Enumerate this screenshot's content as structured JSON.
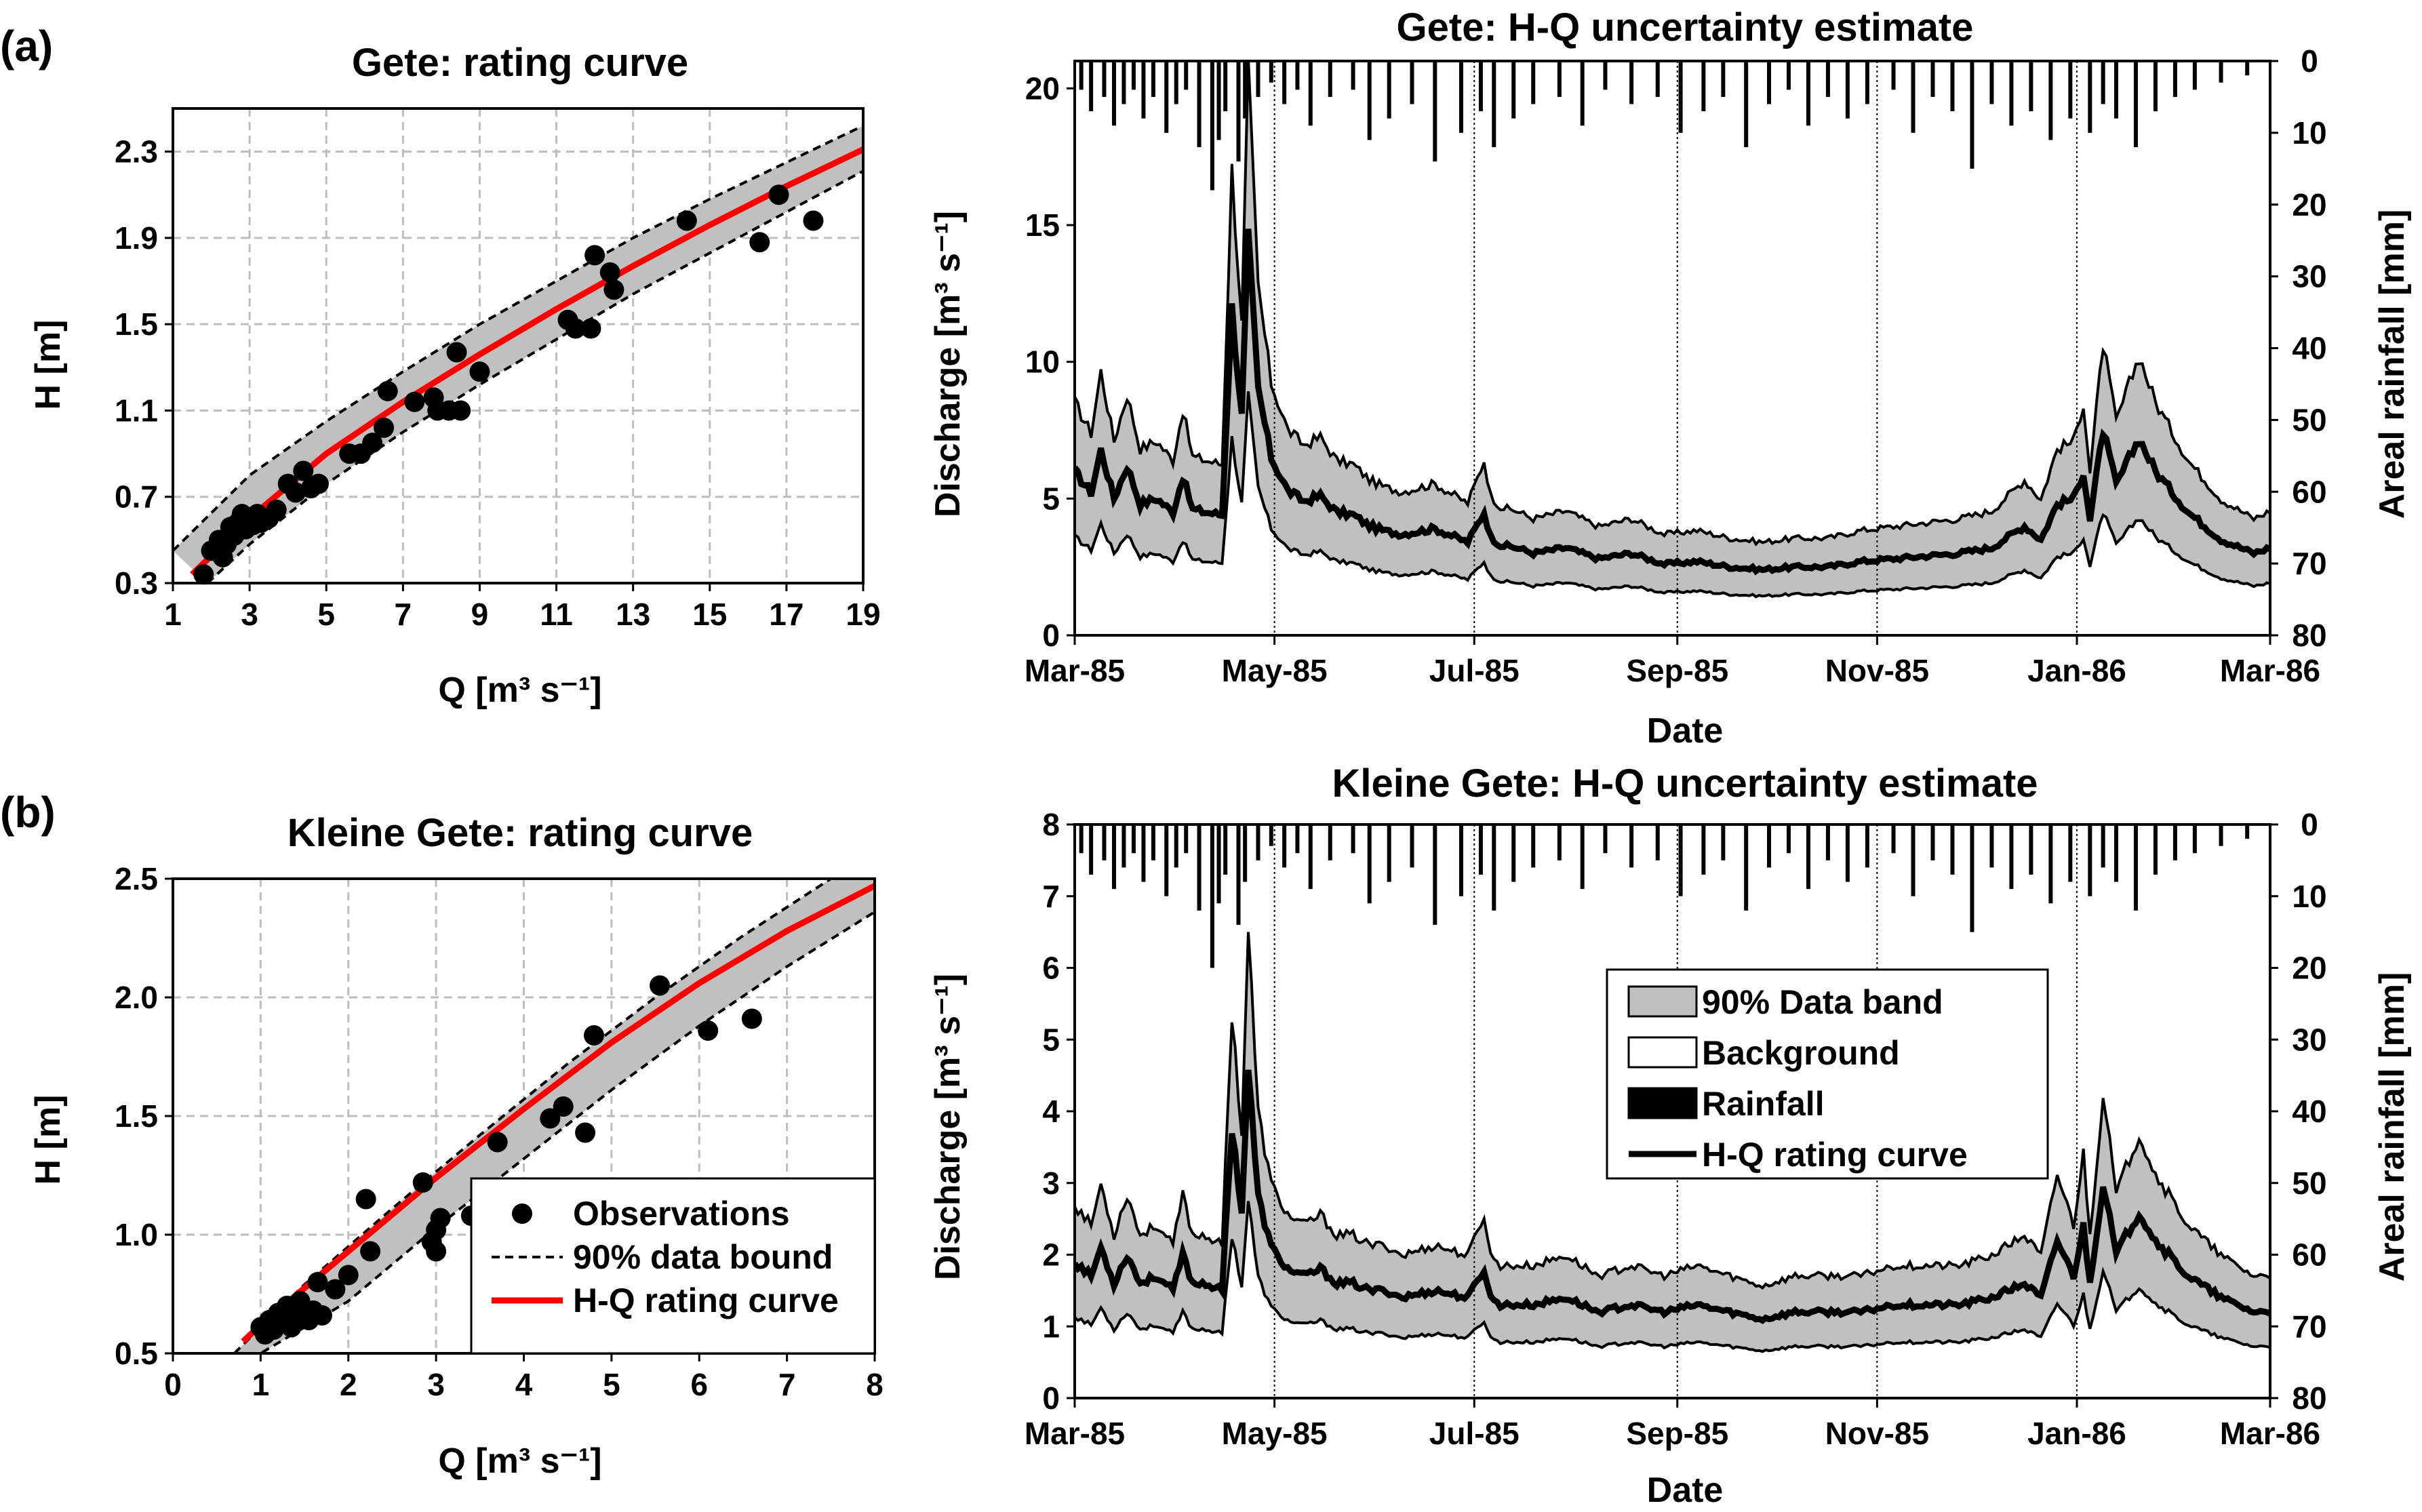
{
  "panel_labels": [
    "(a)",
    "(b)"
  ],
  "chart_data": [
    {
      "id": "gete-rating",
      "type": "scatter",
      "title": "Gete: rating curve",
      "xlabel": "Q [m³ s⁻¹]",
      "ylabel": "H [m]",
      "xlim": [
        1,
        19
      ],
      "ylim": [
        0.3,
        2.5
      ],
      "xticks": [
        1,
        3,
        5,
        7,
        9,
        11,
        13,
        15,
        17,
        19
      ],
      "yticks": [
        0.3,
        0.7,
        1.1,
        1.5,
        1.9,
        2.3
      ],
      "grid": true,
      "series": [
        {
          "name": "Observations",
          "kind": "points",
          "x": [
            1.8,
            2.0,
            2.2,
            2.3,
            2.4,
            2.5,
            2.6,
            2.7,
            2.8,
            2.9,
            3.0,
            3.1,
            3.2,
            3.3,
            3.5,
            3.7,
            4.0,
            4.2,
            4.4,
            4.6,
            4.8,
            5.6,
            5.9,
            6.2,
            6.5,
            6.6,
            7.3,
            7.8,
            7.9,
            8.2,
            8.4,
            8.5,
            9.0,
            11.3,
            11.5,
            11.9,
            12.0,
            12.4,
            12.5,
            14.4,
            16.3,
            16.8,
            17.7
          ],
          "y": [
            0.34,
            0.45,
            0.5,
            0.42,
            0.48,
            0.56,
            0.52,
            0.58,
            0.62,
            0.55,
            0.6,
            0.57,
            0.62,
            0.58,
            0.6,
            0.64,
            0.76,
            0.72,
            0.82,
            0.74,
            0.76,
            0.9,
            0.9,
            0.95,
            1.02,
            1.19,
            1.14,
            1.16,
            1.1,
            1.1,
            1.37,
            1.1,
            1.28,
            1.52,
            1.48,
            1.48,
            1.82,
            1.74,
            1.66,
            1.98,
            1.88,
            2.1,
            1.98
          ]
        },
        {
          "name": "90% data bound",
          "kind": "upper-bound",
          "x": [
            1.0,
            3.0,
            5.0,
            7.0,
            9.0,
            11.0,
            13.0,
            15.0,
            17.0,
            19.0
          ],
          "y": [
            0.45,
            0.8,
            1.05,
            1.28,
            1.5,
            1.7,
            1.9,
            2.08,
            2.25,
            2.42
          ]
        },
        {
          "name": "90% data bound",
          "kind": "lower-bound",
          "x": [
            1.9,
            3.0,
            5.0,
            7.0,
            9.0,
            11.0,
            13.0,
            15.0,
            17.0,
            19.0
          ],
          "y": [
            0.3,
            0.48,
            0.76,
            1.0,
            1.22,
            1.43,
            1.64,
            1.83,
            2.02,
            2.21
          ]
        },
        {
          "name": "H-Q rating curve",
          "kind": "rating-curve",
          "x": [
            1.5,
            3.0,
            5.0,
            7.0,
            9.0,
            11.0,
            13.0,
            15.0,
            17.0,
            19.0
          ],
          "y": [
            0.34,
            0.6,
            0.9,
            1.14,
            1.36,
            1.57,
            1.77,
            1.96,
            2.14,
            2.31
          ]
        }
      ]
    },
    {
      "id": "kleine-gete-rating",
      "type": "scatter",
      "title": "Kleine Gete: rating curve",
      "xlabel": "Q [m³ s⁻¹]",
      "ylabel": "H [m]",
      "xlim": [
        0,
        8
      ],
      "ylim": [
        0.5,
        2.5
      ],
      "xticks": [
        0,
        1,
        2,
        3,
        4,
        5,
        6,
        7,
        8
      ],
      "yticks": [
        0.5,
        1.0,
        1.5,
        2.0,
        2.5
      ],
      "grid": true,
      "legend": {
        "position": "bottom-right",
        "entries": [
          "Observations",
          "90% data bound",
          "H-Q rating curve"
        ]
      },
      "series": [
        {
          "name": "Observations",
          "kind": "points",
          "x": [
            1.0,
            1.05,
            1.1,
            1.15,
            1.2,
            1.25,
            1.3,
            1.35,
            1.4,
            1.45,
            1.5,
            1.55,
            1.6,
            1.65,
            1.7,
            1.85,
            2.0,
            2.2,
            2.25,
            2.85,
            2.95,
            3.0,
            3.0,
            3.05,
            3.4,
            3.55,
            3.7,
            4.3,
            4.45,
            4.7,
            4.8,
            5.55,
            6.1,
            6.6
          ],
          "y": [
            0.61,
            0.58,
            0.64,
            0.6,
            0.67,
            0.63,
            0.7,
            0.61,
            0.66,
            0.72,
            0.68,
            0.64,
            0.68,
            0.8,
            0.66,
            0.77,
            0.83,
            1.15,
            0.93,
            1.22,
            0.97,
            1.02,
            0.93,
            1.07,
            1.08,
            1.14,
            1.39,
            1.49,
            1.54,
            1.43,
            1.84,
            2.05,
            1.86,
            1.91
          ]
        },
        {
          "name": "90% data bound",
          "kind": "upper-bound",
          "x": [
            0.7,
            1.5,
            2.5,
            3.5,
            4.5,
            5.5,
            6.5,
            7.5,
            8.0
          ],
          "y": [
            0.5,
            0.79,
            1.11,
            1.42,
            1.72,
            2.0,
            2.26,
            2.5,
            2.59
          ]
        },
        {
          "name": "90% data bound",
          "kind": "lower-bound",
          "x": [
            0.4,
            1.0,
            2.0,
            3.0,
            4.0,
            5.0,
            6.0,
            7.0,
            8.0
          ],
          "y": [
            0.5,
            0.5,
            0.72,
            1.03,
            1.32,
            1.61,
            1.88,
            2.13,
            2.36
          ]
        },
        {
          "name": "H-Q rating curve",
          "kind": "rating-curve",
          "x": [
            0.8,
            1.0,
            2.0,
            3.0,
            4.0,
            5.0,
            6.0,
            7.0,
            8.0
          ],
          "y": [
            0.55,
            0.62,
            0.93,
            1.24,
            1.53,
            1.81,
            2.06,
            2.28,
            2.47
          ]
        }
      ]
    },
    {
      "id": "gete-timeseries",
      "type": "area",
      "title": "Gete: H-Q uncertainty estimate",
      "xlabel": "Date",
      "ylabel": "Discharge [m³ s⁻¹]",
      "y2label": "Areal rainfall [mm]",
      "xlim": [
        "1985-03-01",
        "1986-03-01"
      ],
      "xticks": [
        "Mar-85",
        "May-85",
        "Jul-85",
        "Sep-85",
        "Nov-85",
        "Jan-86",
        "Mar-86"
      ],
      "ylim": [
        0,
        21
      ],
      "yticks": [
        0,
        5,
        10,
        15,
        20
      ],
      "y2lim": [
        80,
        0
      ],
      "y2ticks": [
        0,
        10,
        20,
        30,
        40,
        50,
        60,
        70,
        80
      ],
      "y2_inverted": true,
      "series": [
        {
          "name": "H-Q rating curve",
          "kind": "median-keypoints",
          "day": [
            0,
            5,
            8,
            12,
            16,
            20,
            25,
            30,
            33,
            36,
            40,
            45,
            48,
            51,
            53,
            56,
            60,
            65,
            70,
            75,
            80,
            85,
            90,
            95,
            100,
            110,
            120,
            125,
            127,
            130,
            135,
            140,
            150,
            160,
            170,
            180,
            190,
            200,
            210,
            220,
            230,
            240,
            250,
            260,
            270,
            280,
            290,
            295,
            300,
            305,
            308,
            310,
            314,
            318,
            325,
            330,
            340,
            350,
            360,
            365
          ],
          "value": [
            6.0,
            5.2,
            6.8,
            5.0,
            6.2,
            4.8,
            5.0,
            4.5,
            5.8,
            4.6,
            4.5,
            4.4,
            12.0,
            8.0,
            14.5,
            9.0,
            6.5,
            5.3,
            4.9,
            5.1,
            4.5,
            4.4,
            4.0,
            3.8,
            3.7,
            3.9,
            3.4,
            4.5,
            3.6,
            3.3,
            3.2,
            3.0,
            3.2,
            2.8,
            3.0,
            2.6,
            2.7,
            2.5,
            2.4,
            2.5,
            2.5,
            2.7,
            2.8,
            2.9,
            3.0,
            3.2,
            4.0,
            3.5,
            4.8,
            5.0,
            6.0,
            4.2,
            7.5,
            5.5,
            7.2,
            6.0,
            4.5,
            3.5,
            3.0,
            3.2
          ]
        },
        {
          "name": "Rainfall",
          "kind": "events",
          "day": [
            2,
            5,
            9,
            12,
            15,
            18,
            21,
            24,
            28,
            31,
            34,
            38,
            42,
            44,
            46,
            50,
            52,
            56,
            60,
            64,
            68,
            72,
            78,
            85,
            90,
            96,
            103,
            110,
            118,
            124,
            128,
            134,
            140,
            148,
            155,
            162,
            170,
            178,
            185,
            192,
            198,
            205,
            212,
            218,
            224,
            230,
            236,
            242,
            250,
            256,
            262,
            268,
            274,
            280,
            286,
            292,
            298,
            304,
            310,
            314,
            318,
            324,
            330,
            336,
            342,
            350,
            358
          ],
          "mm": [
            4,
            7,
            5,
            9,
            6,
            4,
            8,
            5,
            10,
            6,
            4,
            12,
            18,
            11,
            7,
            14,
            8,
            5,
            3,
            6,
            4,
            9,
            5,
            4,
            11,
            8,
            6,
            14,
            10,
            7,
            12,
            8,
            6,
            5,
            9,
            4,
            6,
            5,
            10,
            7,
            5,
            12,
            6,
            4,
            9,
            5,
            8,
            6,
            4,
            10,
            5,
            7,
            15,
            6,
            9,
            7,
            11,
            8,
            10,
            6,
            8,
            12,
            7,
            5,
            4,
            3,
            2
          ]
        }
      ]
    },
    {
      "id": "kleine-gete-timeseries",
      "type": "area",
      "title": "Kleine Gete: H-Q uncertainty estimate",
      "xlabel": "Date",
      "ylabel": "Discharge [m³ s⁻¹]",
      "y2label": "Areal rainfall [mm]",
      "xlim": [
        "1985-03-01",
        "1986-03-01"
      ],
      "xticks": [
        "Mar-85",
        "May-85",
        "Jul-85",
        "Sep-85",
        "Nov-85",
        "Jan-86",
        "Mar-86"
      ],
      "ylim": [
        0,
        8
      ],
      "yticks": [
        0,
        1,
        2,
        3,
        4,
        5,
        6,
        7,
        8
      ],
      "y2lim": [
        80,
        0
      ],
      "y2ticks": [
        0,
        10,
        20,
        30,
        40,
        50,
        60,
        70,
        80
      ],
      "y2_inverted": true,
      "legend": {
        "position": "center",
        "entries": [
          "90% Data band",
          "Background",
          "Rainfall",
          "H-Q rating curve"
        ]
      },
      "series": [
        {
          "name": "H-Q rating curve",
          "kind": "median-keypoints",
          "day": [
            0,
            5,
            8,
            12,
            16,
            20,
            25,
            30,
            33,
            36,
            40,
            45,
            48,
            51,
            53,
            56,
            60,
            65,
            70,
            75,
            80,
            85,
            90,
            95,
            100,
            110,
            120,
            125,
            127,
            130,
            135,
            140,
            150,
            160,
            170,
            180,
            190,
            200,
            210,
            220,
            230,
            240,
            250,
            260,
            270,
            280,
            290,
            295,
            300,
            305,
            308,
            310,
            314,
            318,
            325,
            330,
            340,
            350,
            360,
            365
          ],
          "value": [
            1.9,
            1.7,
            2.1,
            1.6,
            2.0,
            1.6,
            1.7,
            1.5,
            2.0,
            1.6,
            1.6,
            1.5,
            3.8,
            2.6,
            4.6,
            2.8,
            2.1,
            1.8,
            1.7,
            1.8,
            1.6,
            1.6,
            1.5,
            1.5,
            1.4,
            1.5,
            1.4,
            1.8,
            1.4,
            1.3,
            1.3,
            1.3,
            1.4,
            1.2,
            1.3,
            1.2,
            1.3,
            1.2,
            1.1,
            1.2,
            1.2,
            1.2,
            1.3,
            1.3,
            1.3,
            1.4,
            1.6,
            1.4,
            2.2,
            1.7,
            2.4,
            1.6,
            3.0,
            2.0,
            2.6,
            2.2,
            1.7,
            1.4,
            1.2,
            1.2
          ]
        },
        {
          "name": "Rainfall",
          "kind": "events",
          "day": [
            2,
            5,
            9,
            12,
            15,
            18,
            21,
            24,
            28,
            31,
            34,
            38,
            42,
            44,
            46,
            50,
            52,
            56,
            60,
            64,
            68,
            72,
            78,
            85,
            90,
            96,
            103,
            110,
            118,
            124,
            128,
            134,
            140,
            148,
            155,
            162,
            170,
            178,
            185,
            192,
            198,
            205,
            212,
            218,
            224,
            230,
            236,
            242,
            250,
            256,
            262,
            268,
            274,
            280,
            286,
            292,
            298,
            304,
            310,
            314,
            318,
            324,
            330,
            336,
            342,
            350,
            358
          ],
          "mm": [
            4,
            7,
            5,
            9,
            6,
            4,
            8,
            5,
            10,
            6,
            4,
            12,
            20,
            11,
            7,
            14,
            8,
            5,
            3,
            6,
            4,
            9,
            5,
            4,
            11,
            8,
            6,
            14,
            10,
            7,
            12,
            8,
            6,
            5,
            9,
            4,
            6,
            5,
            10,
            7,
            5,
            12,
            6,
            4,
            9,
            5,
            8,
            6,
            4,
            10,
            5,
            7,
            15,
            6,
            9,
            7,
            11,
            8,
            10,
            6,
            8,
            12,
            7,
            5,
            4,
            3,
            2
          ]
        }
      ]
    }
  ]
}
